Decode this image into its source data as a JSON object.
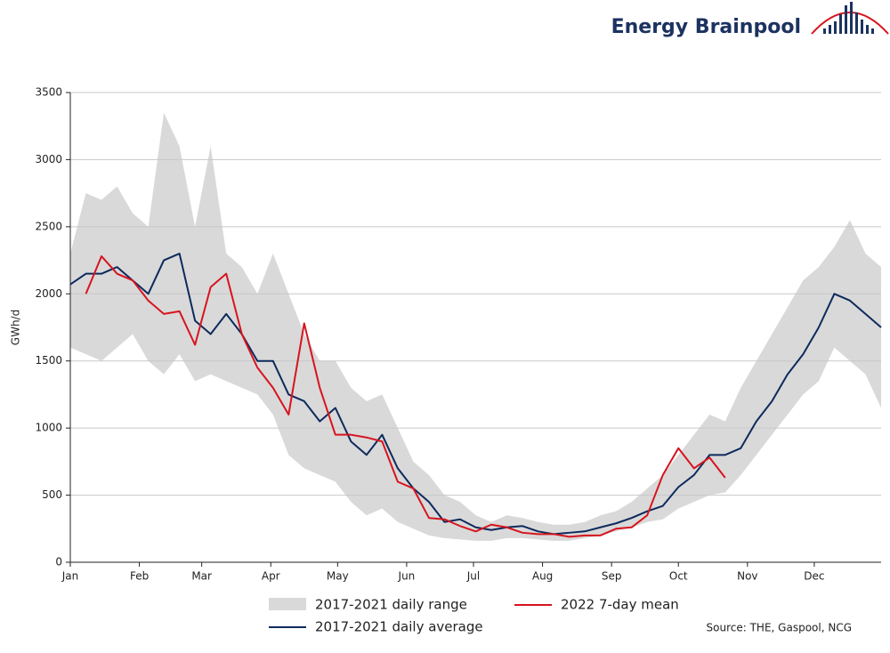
{
  "brand": "Energy Brainpool",
  "chart_data": {
    "type": "line",
    "ylabel": "GWh/d",
    "source": "Source: THE, Gaspool, NCG",
    "x": [
      1,
      8,
      15,
      22,
      29,
      36,
      43,
      50,
      57,
      64,
      71,
      78,
      85,
      92,
      99,
      106,
      113,
      120,
      127,
      134,
      141,
      148,
      155,
      162,
      169,
      176,
      183,
      190,
      197,
      204,
      211,
      218,
      225,
      232,
      239,
      246,
      253,
      260,
      267,
      274,
      281,
      288,
      295,
      302,
      309,
      316,
      323,
      330,
      337,
      344,
      351,
      358,
      365
    ],
    "xlim": [
      1,
      365
    ],
    "xticks": [
      {
        "value": 1,
        "label": "Jan"
      },
      {
        "value": 32,
        "label": "Feb"
      },
      {
        "value": 60,
        "label": "Mar"
      },
      {
        "value": 91,
        "label": "Apr"
      },
      {
        "value": 121,
        "label": "May"
      },
      {
        "value": 152,
        "label": "Jun"
      },
      {
        "value": 182,
        "label": "Jul"
      },
      {
        "value": 213,
        "label": "Aug"
      },
      {
        "value": 244,
        "label": "Sep"
      },
      {
        "value": 274,
        "label": "Oct"
      },
      {
        "value": 305,
        "label": "Nov"
      },
      {
        "value": 335,
        "label": "Dec"
      }
    ],
    "ylim": [
      0,
      3500
    ],
    "yticks": [
      0,
      500,
      1000,
      1500,
      2000,
      2500,
      3000,
      3500
    ],
    "grid": true,
    "range": {
      "name": "2017-2021 daily range",
      "color": "#d9d9d9",
      "upper": [
        2300,
        2750,
        2700,
        2800,
        2600,
        2500,
        3350,
        3100,
        2500,
        3100,
        2300,
        2200,
        2000,
        2300,
        2000,
        1700,
        1500,
        1500,
        1300,
        1200,
        1250,
        1000,
        750,
        650,
        500,
        450,
        350,
        300,
        350,
        330,
        300,
        280,
        280,
        300,
        350,
        380,
        450,
        550,
        650,
        800,
        950,
        1100,
        1050,
        1300,
        1500,
        1700,
        1900,
        2100,
        2200,
        2350,
        2550,
        2300,
        2200
      ],
      "lower": [
        1600,
        1550,
        1500,
        1600,
        1700,
        1500,
        1400,
        1550,
        1350,
        1400,
        1350,
        1300,
        1250,
        1100,
        800,
        700,
        650,
        600,
        450,
        350,
        400,
        300,
        250,
        200,
        180,
        170,
        160,
        160,
        180,
        180,
        170,
        160,
        160,
        180,
        200,
        230,
        260,
        300,
        320,
        400,
        450,
        500,
        520,
        650,
        800,
        950,
        1100,
        1250,
        1350,
        1600,
        1500,
        1400,
        1150
      ]
    },
    "series": [
      {
        "name": "2017-2021 daily average",
        "color": "#0d2a5c",
        "values": [
          2070,
          2150,
          2150,
          2200,
          2100,
          2000,
          2250,
          2300,
          1800,
          1700,
          1850,
          1700,
          1500,
          1500,
          1250,
          1200,
          1050,
          1150,
          900,
          800,
          950,
          700,
          550,
          450,
          300,
          320,
          260,
          240,
          260,
          270,
          230,
          210,
          220,
          230,
          260,
          290,
          330,
          380,
          420,
          560,
          650,
          800,
          800,
          850,
          1050,
          1200,
          1400,
          1550,
          1750,
          2000,
          1950,
          1850,
          1750
        ]
      },
      {
        "name": "2022 7-day mean",
        "color": "#d7141e",
        "values": [
          null,
          2000,
          2280,
          2150,
          2100,
          1950,
          1850,
          1870,
          1620,
          2050,
          2150,
          1700,
          1450,
          1300,
          1100,
          1780,
          1300,
          950,
          950,
          930,
          900,
          600,
          550,
          330,
          320,
          270,
          230,
          280,
          260,
          220,
          210,
          210,
          190,
          200,
          200,
          250,
          260,
          350,
          650,
          850,
          700,
          780,
          630,
          null,
          null,
          null,
          null,
          null,
          null,
          null,
          null,
          null,
          null
        ]
      }
    ]
  }
}
